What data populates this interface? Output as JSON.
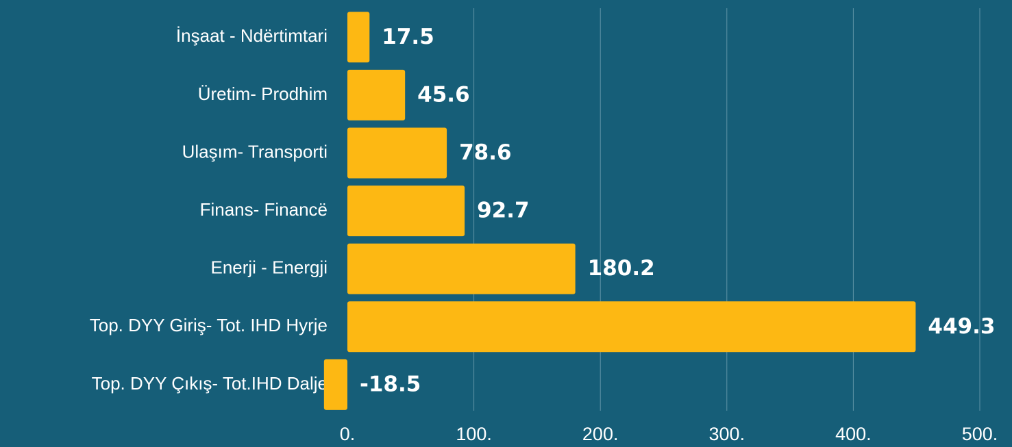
{
  "chart_data": {
    "type": "bar",
    "orientation": "horizontal",
    "categories": [
      "İnşaat - Ndërtimtari",
      "Üretim- Prodhim",
      "Ulaşım- Transporti",
      "Finans- Financë",
      "Enerji - Energji",
      "Top. DYY Giriş- Tot. IHD Hyrje",
      "Top. DYY Çıkış- Tot.IHD Dalje"
    ],
    "values": [
      17.5,
      45.6,
      78.6,
      92.7,
      180.2,
      449.3,
      -18.5
    ],
    "color": "#fdb813",
    "xlim": [
      0,
      500
    ],
    "xticks": [
      {
        "value": 0,
        "label": "0."
      },
      {
        "value": 100,
        "label": "100."
      },
      {
        "value": 200,
        "label": "200."
      },
      {
        "value": 300,
        "label": "300."
      },
      {
        "value": 400,
        "label": "400."
      },
      {
        "value": 500,
        "label": "500."
      }
    ],
    "grid": true
  }
}
